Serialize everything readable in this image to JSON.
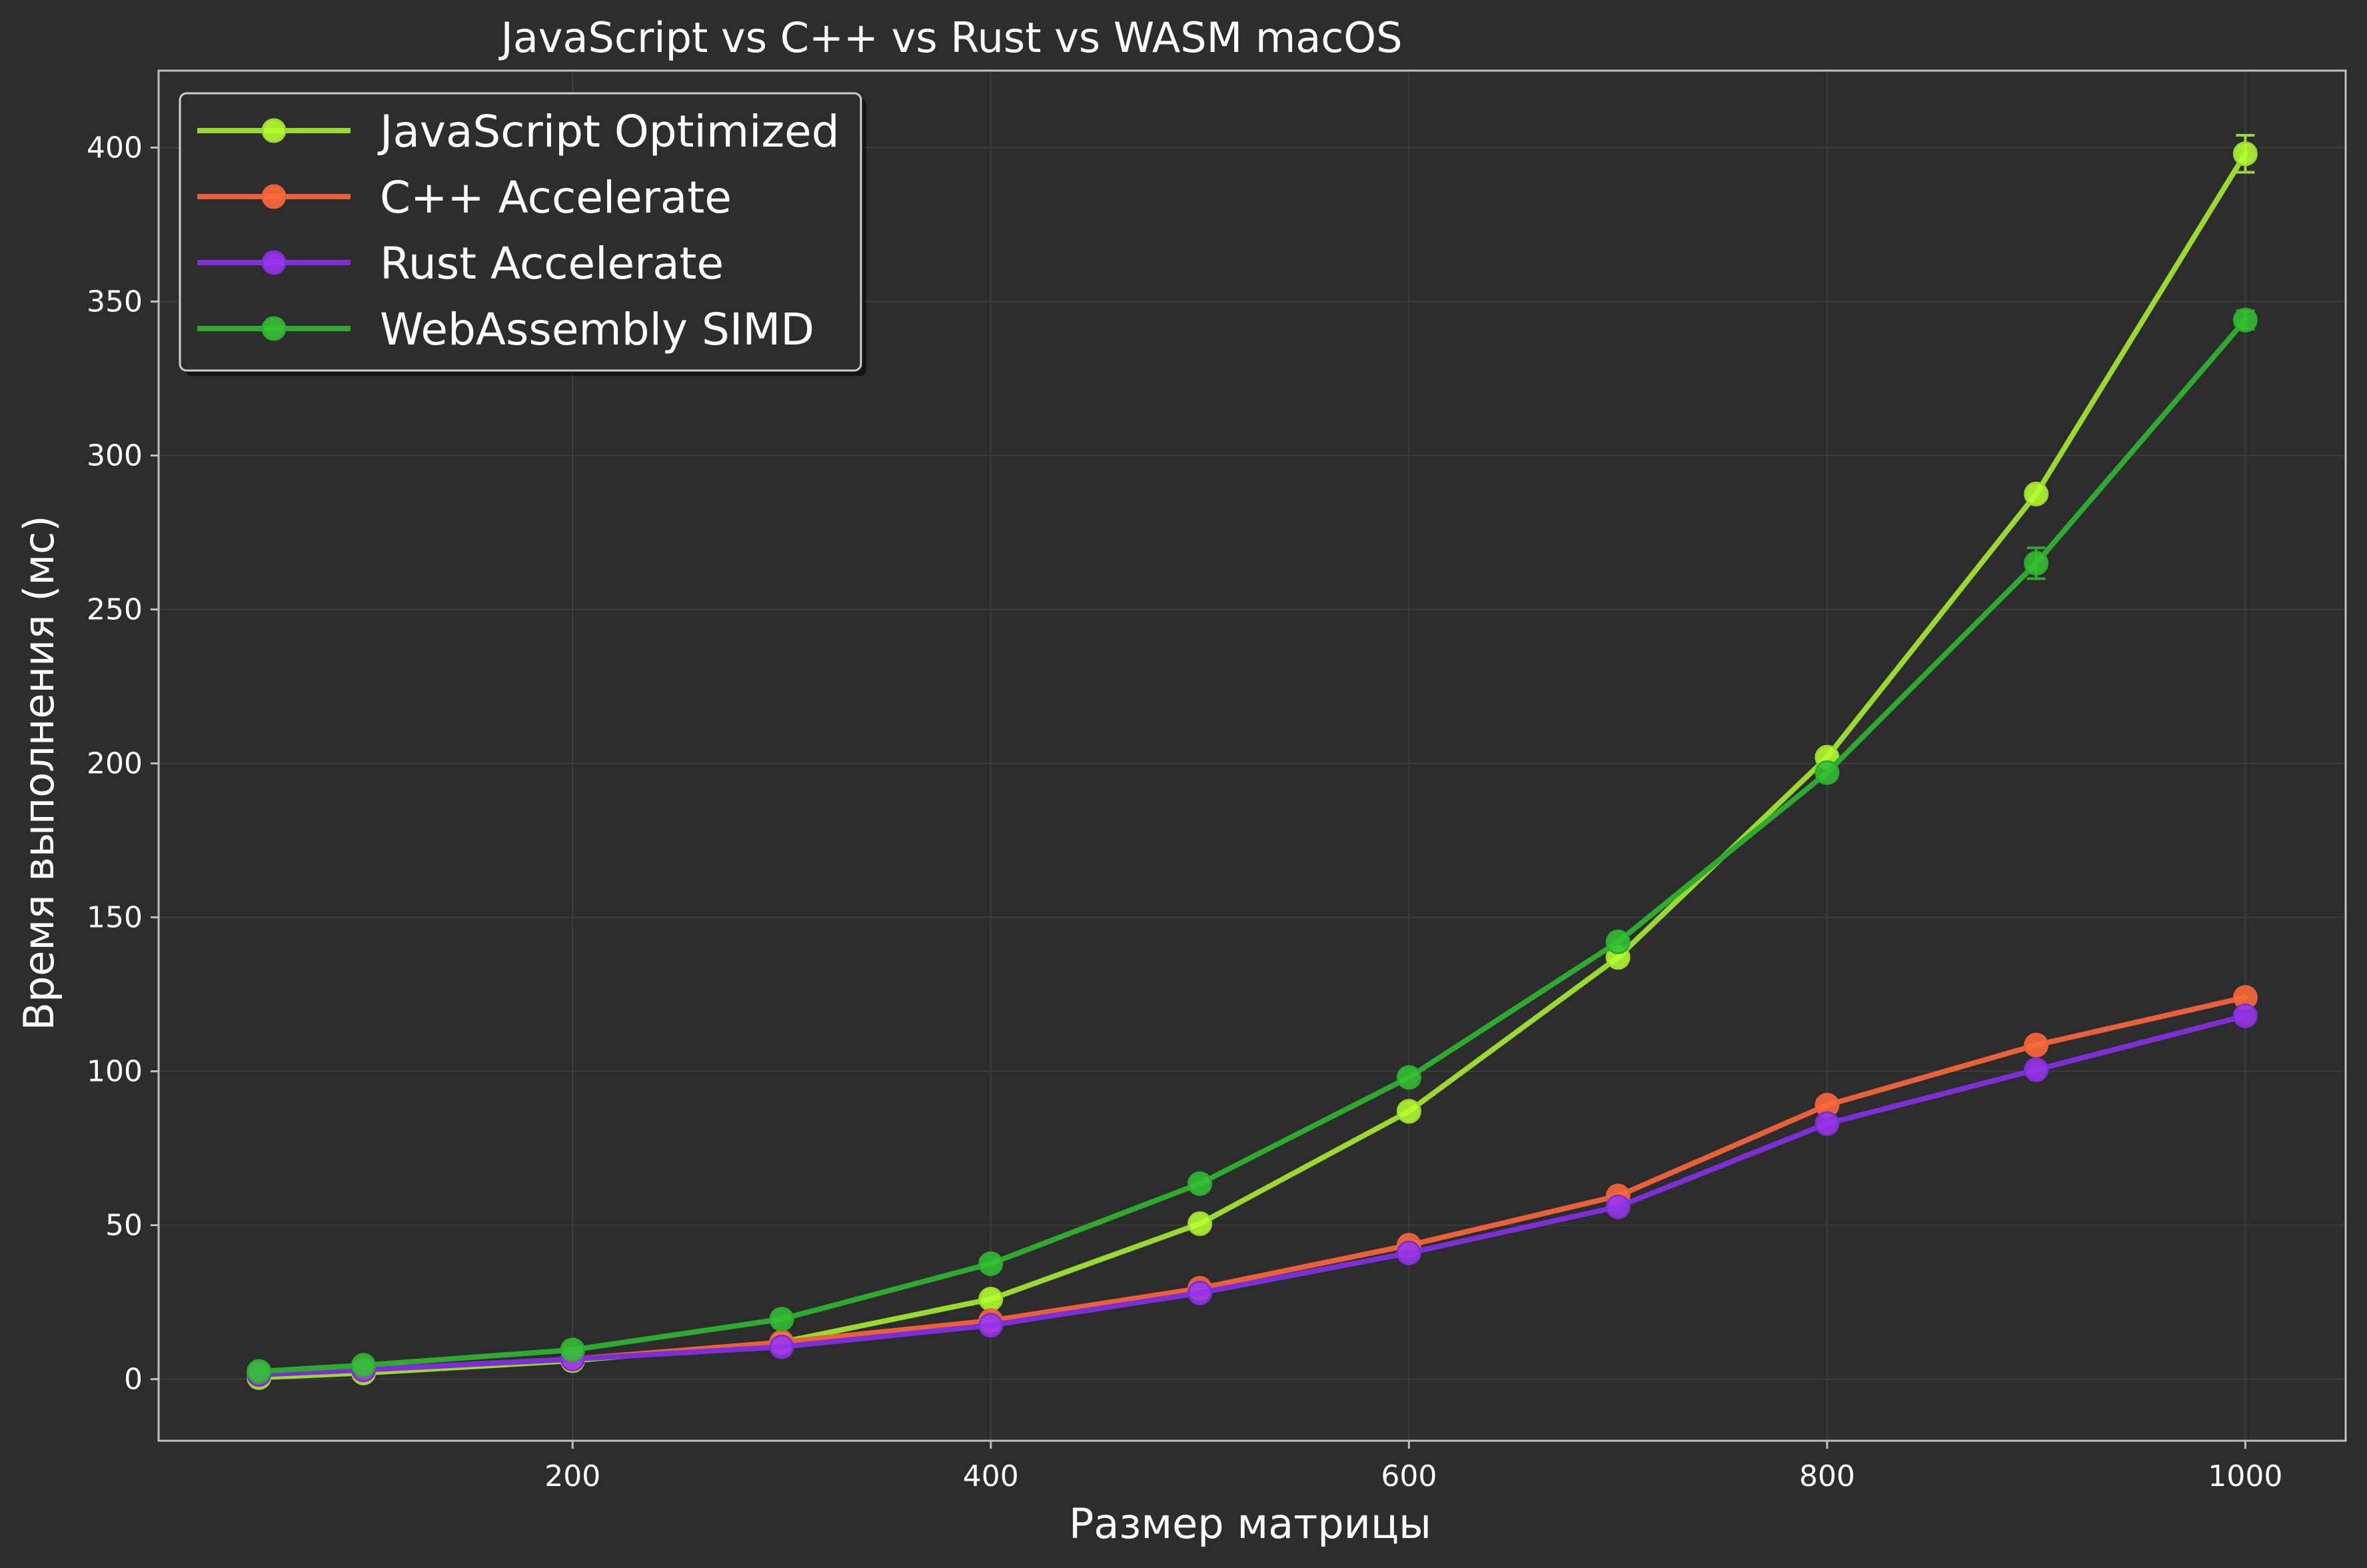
{
  "chart_data": {
    "type": "line",
    "title": "JavaScript vs C++ vs Rust vs WASM macOS",
    "xlabel": "Размер матрицы",
    "ylabel": "Время выполнения (мс)",
    "xlim": [
      2,
      1048
    ],
    "ylim": [
      -20,
      425
    ],
    "xticks": [
      200,
      400,
      600,
      800,
      1000
    ],
    "yticks": [
      0,
      50,
      100,
      150,
      200,
      250,
      300,
      350,
      400
    ],
    "grid": true,
    "legend_position": "top-left",
    "x": [
      50,
      100,
      200,
      300,
      400,
      500,
      600,
      700,
      800,
      900,
      1000
    ],
    "series": [
      {
        "name": "JavaScript Optimized",
        "color": "#9ad932",
        "marker_color": "#b5ff2e",
        "values": [
          0.5,
          2,
          6,
          12,
          26,
          50.5,
          87,
          137,
          202,
          287.5,
          398
        ],
        "error": [
          0,
          0,
          0,
          0,
          0,
          0,
          0,
          0,
          0,
          0,
          6
        ]
      },
      {
        "name": "C++ Accelerate",
        "color": "#e8613a",
        "marker_color": "#ff6a3a",
        "values": [
          1.5,
          3,
          6.5,
          12,
          19,
          29.5,
          43.5,
          59.5,
          89,
          108.5,
          124
        ],
        "error": [
          0,
          0,
          0,
          0,
          0,
          0,
          0,
          0,
          0,
          0,
          0
        ]
      },
      {
        "name": "Rust Accelerate",
        "color": "#7c2fd4",
        "marker_color": "#9a35ef",
        "values": [
          1.5,
          3,
          6.5,
          10.5,
          17.5,
          28,
          41,
          56,
          83,
          100.5,
          118
        ],
        "error": [
          0,
          0,
          0,
          0,
          0,
          0,
          0,
          0,
          0,
          0,
          0
        ]
      },
      {
        "name": "WebAssembly SIMD",
        "color": "#2fa92f",
        "marker_color": "#33c233",
        "values": [
          2.5,
          4.5,
          9.5,
          19.5,
          37.5,
          63.5,
          98,
          142,
          197,
          265,
          344
        ],
        "error": [
          0,
          0,
          0,
          0,
          0,
          0,
          0,
          0,
          0,
          5,
          3
        ]
      }
    ]
  },
  "colors": {
    "background": "#2d2d2d",
    "axes_frame": "#bfbfbf",
    "grid": "#3d3d3d",
    "text": "#ffffff"
  }
}
